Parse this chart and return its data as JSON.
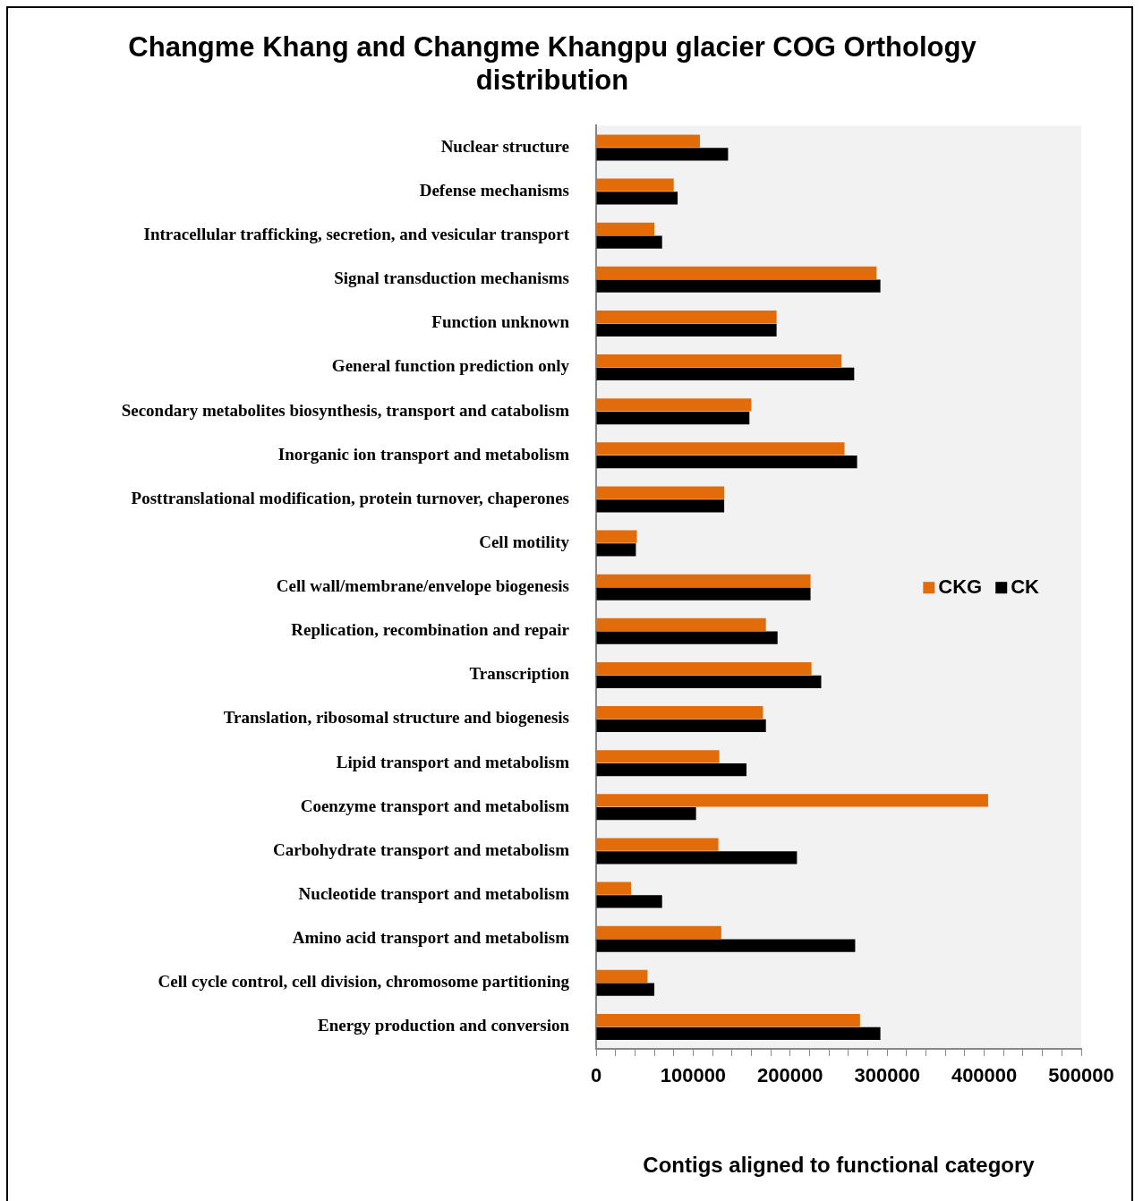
{
  "chart_data": {
    "type": "bar",
    "orientation": "horizontal",
    "title": "Changme Khang and Changme Khangpu glacier COG Orthology distribution",
    "xlabel": "Contigs aligned to functional category",
    "categories": [
      "Nuclear structure",
      "Defense mechanisms",
      "Intracellular trafficking, secretion, and vesicular transport",
      "Signal transduction mechanisms",
      "Function unknown",
      "General function prediction only",
      "Secondary metabolites biosynthesis, transport and catabolism",
      "Inorganic ion transport and metabolism",
      "Posttranslational modification, protein turnover, chaperones",
      "Cell motility",
      "Cell wall/membrane/envelope biogenesis",
      "Replication, recombination and repair",
      "Transcription",
      "Translation, ribosomal structure and biogenesis",
      "Lipid transport and metabolism",
      "Coenzyme transport and metabolism",
      "Carbohydrate transport and metabolism",
      "Nucleotide transport and metabolism",
      "Amino acid transport and metabolism",
      "Cell cycle control, cell division, chromosome partitioning",
      "Energy production and conversion"
    ],
    "series": [
      {
        "name": "CKG",
        "color": "#e36c0a",
        "values": [
          107000,
          80000,
          60000,
          289000,
          186000,
          253000,
          160000,
          256000,
          132000,
          42000,
          221000,
          175000,
          222000,
          172000,
          127000,
          404000,
          126000,
          36000,
          129000,
          53000,
          272000
        ]
      },
      {
        "name": "CK",
        "color": "#000000",
        "values": [
          136000,
          84000,
          68000,
          293000,
          186000,
          266000,
          158000,
          269000,
          132000,
          41000,
          221000,
          187000,
          232000,
          175000,
          155000,
          103000,
          207000,
          68000,
          267000,
          60000,
          293000
        ]
      }
    ],
    "xlim": [
      0,
      500000
    ],
    "xticks": [
      0,
      {
        "value": 20000,
        "label": null
      },
      {
        "value": 40000,
        "label": null
      },
      {
        "value": 60000,
        "label": null
      },
      {
        "value": 80000,
        "label": null
      },
      100000,
      {
        "value": 120000,
        "label": null
      },
      {
        "value": 140000,
        "label": null
      },
      {
        "value": 160000,
        "label": null
      },
      {
        "value": 180000,
        "label": null
      },
      200000,
      {
        "value": 220000,
        "label": null
      },
      {
        "value": 240000,
        "label": null
      },
      {
        "value": 260000,
        "label": null
      },
      {
        "value": 280000,
        "label": null
      },
      300000,
      {
        "value": 320000,
        "label": null
      },
      {
        "value": 340000,
        "label": null
      },
      {
        "value": 360000,
        "label": null
      },
      {
        "value": 380000,
        "label": null
      },
      400000,
      {
        "value": 420000,
        "label": null
      },
      {
        "value": 440000,
        "label": null
      },
      {
        "value": 460000,
        "label": null
      },
      {
        "value": 480000,
        "label": null
      },
      500000
    ],
    "grid": false,
    "legend": "right"
  }
}
